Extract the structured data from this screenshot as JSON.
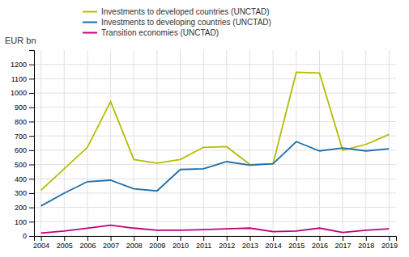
{
  "chart_data": {
    "type": "line",
    "ylabel": "EUR bn",
    "x": [
      2004,
      2005,
      2006,
      2007,
      2008,
      2009,
      2010,
      2011,
      2012,
      2013,
      2014,
      2015,
      2016,
      2017,
      2018,
      2019
    ],
    "series": [
      {
        "name": "Investments to developed countries (UNCTAD)",
        "color": "#b5bd00",
        "values": [
          320,
          470,
          620,
          940,
          535,
          510,
          535,
          620,
          625,
          500,
          505,
          1145,
          1140,
          600,
          640,
          710
        ]
      },
      {
        "name": "Investments to developing countries (UNCTAD)",
        "color": "#1e6fac",
        "values": [
          210,
          300,
          380,
          390,
          330,
          315,
          465,
          470,
          520,
          495,
          505,
          660,
          595,
          615,
          595,
          610
        ]
      },
      {
        "name": "Transition economies (UNCTAD)",
        "color": "#c0007a",
        "values": [
          20,
          35,
          55,
          75,
          55,
          40,
          40,
          45,
          50,
          55,
          30,
          35,
          55,
          25,
          40,
          50
        ]
      }
    ],
    "xlim": [
      2003.7,
      2019.3
    ],
    "xticks": [
      2004,
      2005,
      2006,
      2007,
      2008,
      2009,
      2010,
      2011,
      2012,
      2013,
      2014,
      2015,
      2016,
      2017,
      2018,
      2019
    ],
    "ylim": [
      0,
      1300
    ],
    "yticks": [
      0,
      100,
      200,
      300,
      400,
      500,
      600,
      700,
      800,
      900,
      1000,
      1100,
      1200
    ],
    "grid": true,
    "legend": "upper left"
  }
}
